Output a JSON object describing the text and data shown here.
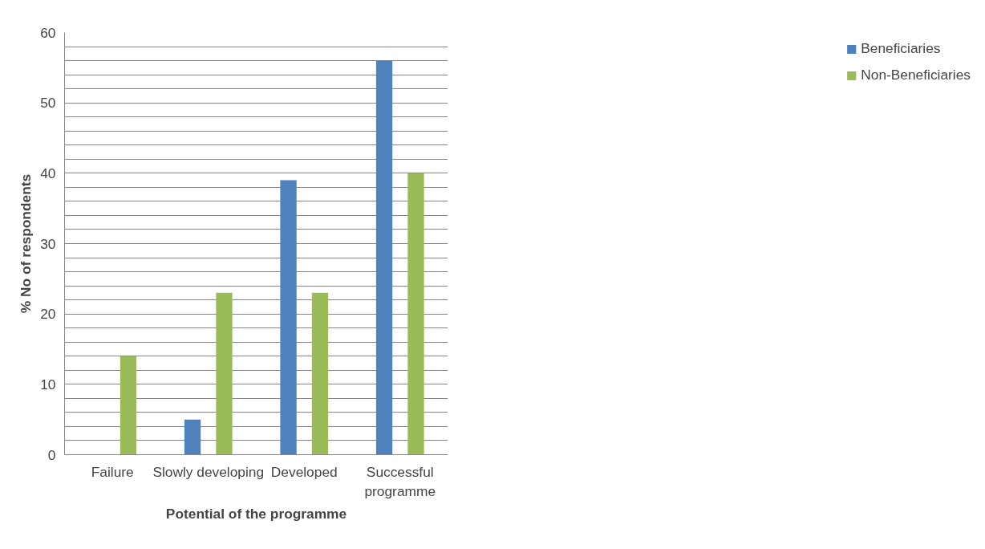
{
  "chart_data": {
    "type": "bar",
    "xlabel": "Potential of the programme",
    "ylabel": "% No of respondents",
    "categories": [
      "Failure",
      "Slowly developing",
      "Developed",
      "Successful programme"
    ],
    "series": [
      {
        "name": "Beneficiaries",
        "color": "#4f81bd",
        "values": [
          0,
          5,
          39,
          56
        ]
      },
      {
        "name": "Non-Beneficiaries",
        "color": "#9bbb59",
        "values": [
          14,
          23,
          23,
          40
        ]
      }
    ],
    "ylim": [
      0,
      60
    ],
    "yticks": [
      0,
      {
        "value": 2,
        "label": null
      },
      {
        "value": 4,
        "label": null
      },
      {
        "value": 6,
        "label": null
      },
      {
        "value": 8,
        "label": null
      },
      10,
      {
        "value": 12,
        "label": null
      },
      {
        "value": 14,
        "label": null
      },
      {
        "value": 16,
        "label": null
      },
      {
        "value": 18,
        "label": null
      },
      20,
      {
        "value": 22,
        "label": null
      },
      {
        "value": 24,
        "label": null
      },
      {
        "value": 26,
        "label": null
      },
      {
        "value": 28,
        "label": null
      },
      30,
      {
        "value": 32,
        "label": null
      },
      {
        "value": 34,
        "label": null
      },
      {
        "value": 36,
        "label": null
      },
      {
        "value": 38,
        "label": null
      },
      40,
      {
        "value": 42,
        "label": null
      },
      {
        "value": 44,
        "label": null
      },
      {
        "value": 46,
        "label": null
      },
      {
        "value": 48,
        "label": null
      },
      50,
      {
        "value": 52,
        "label": null
      },
      {
        "value": 54,
        "label": null
      },
      {
        "value": 56,
        "label": null
      },
      {
        "value": 58,
        "label": null
      },
      60
    ],
    "grid": "y",
    "legend": "right"
  }
}
